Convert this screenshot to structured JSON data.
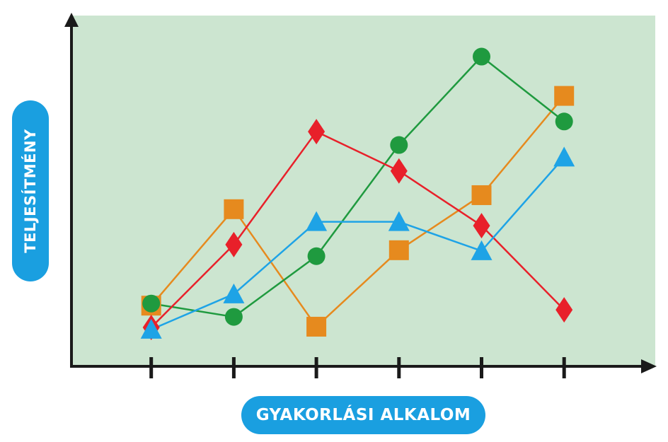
{
  "chart_data": {
    "type": "line",
    "xlabel": "GYAKORLÁSI ALKALOM",
    "ylabel": "TELJESÍTMÉNY",
    "x": [
      1,
      2,
      3,
      4,
      5,
      6
    ],
    "xlim": [
      0,
      7.4
    ],
    "ylim": [
      0,
      100
    ],
    "grid": false,
    "background": "#cce5d0",
    "series": [
      {
        "marker": "square",
        "color": "#e68a1e",
        "values": [
          17.3,
          44.8,
          11.3,
          33.1,
          48.8,
          77.1
        ]
      },
      {
        "marker": "circle",
        "color": "#1f9a3f",
        "values": [
          17.9,
          14.1,
          31.4,
          63.1,
          88.3,
          69.8
        ]
      },
      {
        "marker": "diamond",
        "color": "#e8202a",
        "values": [
          11.1,
          34.7,
          66.9,
          55.7,
          40.1,
          16.1
        ]
      },
      {
        "marker": "triangle",
        "color": "#1ea3e6",
        "values": [
          10.5,
          20.6,
          41.2,
          41.2,
          32.9,
          59.6
        ]
      }
    ]
  }
}
